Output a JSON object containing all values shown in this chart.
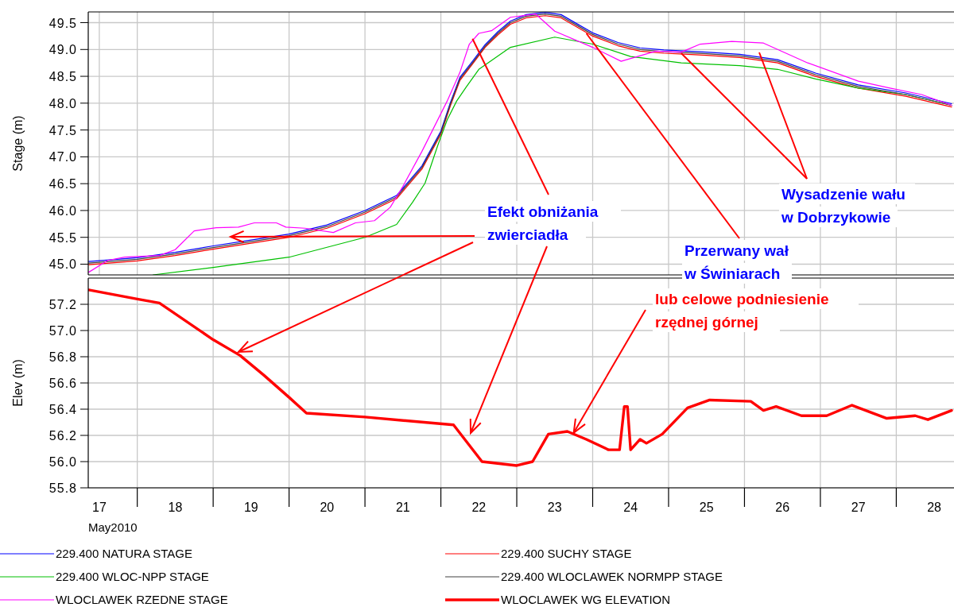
{
  "chart_data": [
    {
      "type": "line",
      "ylabel": "Stage (m)",
      "grid": true,
      "legend": "bottom",
      "tick_labels": "y",
      "xlim": [
        "2010-05-17T08:30",
        "2010-05-28T18:00"
      ],
      "xticks": [
        {
          "value": "2010-05-17T12:00",
          "label": null
        },
        {
          "value": "2010-05-18T00:00",
          "label": null
        },
        {
          "value": "2010-05-19T00:00",
          "label": null
        },
        {
          "value": "2010-05-20T00:00",
          "label": null
        },
        {
          "value": "2010-05-21T00:00",
          "label": null
        },
        {
          "value": "2010-05-22T00:00",
          "label": null
        },
        {
          "value": "2010-05-23T00:00",
          "label": null
        },
        {
          "value": "2010-05-24T00:00",
          "label": null
        },
        {
          "value": "2010-05-25T00:00",
          "label": null
        },
        {
          "value": "2010-05-26T00:00",
          "label": null
        },
        {
          "value": "2010-05-27T00:00",
          "label": null
        },
        {
          "value": "2010-05-28T00:00",
          "label": null
        }
      ],
      "ylim": [
        44.8,
        49.7
      ],
      "yticks": [
        {
          "value": 45,
          "label": "45.0"
        },
        45.5,
        {
          "value": 46,
          "label": "46.0"
        },
        46.5,
        {
          "value": 47,
          "label": "47.0"
        },
        47.5,
        {
          "value": 48,
          "label": "48.0"
        },
        48.5,
        {
          "value": 49,
          "label": "49.0"
        },
        49.5
      ],
      "annotations": [
        {
          "text": "Efekt obniżania\nzwierciadła",
          "x": "2010-05-22T10:00",
          "y": 49.2
        },
        {
          "text": "Przerwany wał\nw Świniarach",
          "x": "2010-05-23T22:00",
          "y": 49.3
        },
        {
          "text": "Wysadzenie wału\nw Dobrzykowie",
          "x": "2010-05-25T04:00",
          "y": 48.93
        }
      ],
      "series": [
        {
          "name": "229.400 NATURA STAGE",
          "color": "#0000ff",
          "x": [
            "2010-05-17T08:40",
            "2010-05-18T00:00",
            "2010-05-18T12:00",
            "2010-05-19T00:00",
            "2010-05-19T12:00",
            "2010-05-20T00:00",
            "2010-05-20T12:00",
            "2010-05-21T00:00",
            "2010-05-21T10:00",
            "2010-05-21T18:00",
            "2010-05-22T00:00",
            "2010-05-22T03:00",
            "2010-05-22T06:00",
            "2010-05-22T10:00",
            "2010-05-22T14:00",
            "2010-05-22T18:00",
            "2010-05-22T22:00",
            "2010-05-23T03:00",
            "2010-05-23T09:00",
            "2010-05-23T14:00",
            "2010-05-23T19:00",
            "2010-05-24T00:00",
            "2010-05-24T08:00",
            "2010-05-24T15:00",
            "2010-05-24T22:30",
            "2010-05-25T06:00",
            "2010-05-25T12:00",
            "2010-05-25T22:30",
            "2010-05-26T10:30",
            "2010-05-26T22:30",
            "2010-05-27T12:00",
            "2010-05-28T03:00",
            "2010-05-28T17:30"
          ],
          "values": [
            45.05,
            45.12,
            45.22,
            45.34,
            45.45,
            45.56,
            45.73,
            46.0,
            46.28,
            46.83,
            47.48,
            48.01,
            48.48,
            48.78,
            49.09,
            49.33,
            49.53,
            49.65,
            49.69,
            49.65,
            49.48,
            49.31,
            49.13,
            49.03,
            48.99,
            48.97,
            48.95,
            48.91,
            48.81,
            48.56,
            48.34,
            48.19,
            47.99
          ]
        },
        {
          "name": "229.400 SUCHY STAGE",
          "color": "#ff0000",
          "x": [
            "2010-05-17T08:40",
            "2010-05-18T00:00",
            "2010-05-18T12:00",
            "2010-05-19T00:00",
            "2010-05-19T12:00",
            "2010-05-20T00:00",
            "2010-05-20T12:00",
            "2010-05-21T00:00",
            "2010-05-21T10:00",
            "2010-05-21T18:00",
            "2010-05-22T00:00",
            "2010-05-22T03:00",
            "2010-05-22T06:00",
            "2010-05-22T10:00",
            "2010-05-22T14:00",
            "2010-05-22T18:00",
            "2010-05-22T22:00",
            "2010-05-23T03:00",
            "2010-05-23T09:00",
            "2010-05-23T14:00",
            "2010-05-23T19:00",
            "2010-05-24T00:00",
            "2010-05-24T08:00",
            "2010-05-24T15:00",
            "2010-05-24T22:30",
            "2010-05-25T06:00",
            "2010-05-25T12:00",
            "2010-05-25T22:30",
            "2010-05-26T10:30",
            "2010-05-26T22:30",
            "2010-05-27T12:00",
            "2010-05-28T03:00",
            "2010-05-28T17:30"
          ],
          "values": [
            44.99,
            45.06,
            45.16,
            45.28,
            45.39,
            45.5,
            45.67,
            45.94,
            46.22,
            46.77,
            47.42,
            47.95,
            48.42,
            48.73,
            49.04,
            49.27,
            49.47,
            49.59,
            49.63,
            49.59,
            49.42,
            49.25,
            49.07,
            48.97,
            48.93,
            48.91,
            48.89,
            48.85,
            48.75,
            48.5,
            48.28,
            48.13,
            47.93
          ]
        },
        {
          "name": "229.400 WLOC-NPP STAGE",
          "color": "#00c000",
          "x": [
            "2010-05-18T05:00",
            "2010-05-19T00:00",
            "2010-05-20T00:00",
            "2010-05-21T00:00",
            "2010-05-21T10:00",
            "2010-05-21T15:00",
            "2010-05-21T19:00",
            "2010-05-21T23:00",
            "2010-05-22T02:00",
            "2010-05-22T05:00",
            "2010-05-22T08:00",
            "2010-05-22T12:00",
            "2010-05-22T22:00",
            "2010-05-23T12:00",
            "2010-05-24T00:00",
            "2010-05-24T12:00",
            "2010-05-25T04:00",
            "2010-05-25T22:30",
            "2010-05-26T10:30",
            "2010-05-26T22:30",
            "2010-05-27T12:00",
            "2010-05-28T03:00",
            "2010-05-28T17:30"
          ],
          "values": [
            44.8,
            44.94,
            45.13,
            45.5,
            45.74,
            46.15,
            46.51,
            47.21,
            47.69,
            48.04,
            48.3,
            48.63,
            49.04,
            49.23,
            49.1,
            48.87,
            48.75,
            48.7,
            48.63,
            48.45,
            48.28,
            48.16,
            47.96
          ]
        },
        {
          "name": "229.400 WLOCLAWEK NORMPP STAGE",
          "color": "#404040",
          "x": [
            "2010-05-17T08:40",
            "2010-05-18T00:00",
            "2010-05-18T12:00",
            "2010-05-19T00:00",
            "2010-05-19T12:00",
            "2010-05-20T00:00",
            "2010-05-20T12:00",
            "2010-05-21T00:00",
            "2010-05-21T10:00",
            "2010-05-21T18:00",
            "2010-05-22T00:00",
            "2010-05-22T03:00",
            "2010-05-22T06:00",
            "2010-05-22T10:00",
            "2010-05-22T14:00",
            "2010-05-22T18:00",
            "2010-05-22T22:00",
            "2010-05-23T03:00",
            "2010-05-23T09:00",
            "2010-05-23T14:00",
            "2010-05-23T19:00",
            "2010-05-24T00:00",
            "2010-05-24T08:00",
            "2010-05-24T15:00",
            "2010-05-24T22:30",
            "2010-05-25T06:00",
            "2010-05-25T12:00",
            "2010-05-25T22:30",
            "2010-05-26T10:30",
            "2010-05-26T22:30",
            "2010-05-27T12:00",
            "2010-05-28T03:00",
            "2010-05-28T17:30"
          ],
          "values": [
            45.02,
            45.09,
            45.19,
            45.31,
            45.42,
            45.53,
            45.7,
            45.97,
            46.25,
            46.8,
            47.45,
            47.98,
            48.45,
            48.75,
            49.06,
            49.3,
            49.5,
            49.62,
            49.66,
            49.62,
            49.45,
            49.28,
            49.1,
            49.0,
            48.96,
            48.94,
            48.92,
            48.88,
            48.78,
            48.53,
            48.31,
            48.16,
            47.96
          ]
        },
        {
          "name": "WLOCLAWEK RZEDNE STAGE",
          "color": "#ff00ff",
          "x": [
            "2010-05-17T08:40",
            "2010-05-17T14:40",
            "2010-05-17T20:00",
            "2010-05-18T07:00",
            "2010-05-18T12:00",
            "2010-05-18T18:00",
            "2010-05-19T01:00",
            "2010-05-19T08:00",
            "2010-05-19T13:00",
            "2010-05-19T20:00",
            "2010-05-19T23:00",
            "2010-05-20T05:00",
            "2010-05-20T14:00",
            "2010-05-20T21:00",
            "2010-05-21T03:00",
            "2010-05-21T08:00",
            "2010-05-21T12:00",
            "2010-05-21T18:00",
            "2010-05-22T02:00",
            "2010-05-22T06:00",
            "2010-05-22T09:00",
            "2010-05-22T12:00",
            "2010-05-22T16:00",
            "2010-05-22T22:00",
            "2010-05-23T06:00",
            "2010-05-23T12:00",
            "2010-05-24T00:00",
            "2010-05-24T09:00",
            "2010-05-24T20:00",
            "2010-05-25T04:00",
            "2010-05-25T10:00",
            "2010-05-25T20:00",
            "2010-05-26T06:00",
            "2010-05-26T20:00",
            "2010-05-27T12:00",
            "2010-05-27T22:00",
            "2010-05-28T08:00",
            "2010-05-28T17:30"
          ],
          "values": [
            44.85,
            45.07,
            45.13,
            45.16,
            45.27,
            45.62,
            45.68,
            45.69,
            45.77,
            45.77,
            45.69,
            45.67,
            45.59,
            45.77,
            45.81,
            46.06,
            46.45,
            47.1,
            48.04,
            48.57,
            49.1,
            49.3,
            49.35,
            49.6,
            49.66,
            49.34,
            49.04,
            48.78,
            48.97,
            48.95,
            49.1,
            49.15,
            49.12,
            48.75,
            48.41,
            48.28,
            48.16,
            47.96
          ]
        }
      ]
    },
    {
      "type": "line",
      "ylabel": "Elev (m)",
      "xlabel": "May2010",
      "grid": true,
      "legend": "bottom",
      "xlim": [
        "2010-05-17T08:30",
        "2010-05-28T18:00"
      ],
      "xticks": [
        {
          "value": "2010-05-17T12:00",
          "label": "17"
        },
        {
          "value": "2010-05-18T00:00",
          "label": null
        },
        {
          "value": "2010-05-18T12:00",
          "label": "18"
        },
        {
          "value": "2010-05-19T00:00",
          "label": null
        },
        {
          "value": "2010-05-19T12:00",
          "label": "19"
        },
        {
          "value": "2010-05-20T00:00",
          "label": null
        },
        {
          "value": "2010-05-20T12:00",
          "label": "20"
        },
        {
          "value": "2010-05-21T00:00",
          "label": null
        },
        {
          "value": "2010-05-21T12:00",
          "label": "21"
        },
        {
          "value": "2010-05-22T00:00",
          "label": null
        },
        {
          "value": "2010-05-22T12:00",
          "label": "22"
        },
        {
          "value": "2010-05-23T00:00",
          "label": null
        },
        {
          "value": "2010-05-23T12:00",
          "label": "23"
        },
        {
          "value": "2010-05-24T00:00",
          "label": null
        },
        {
          "value": "2010-05-24T12:00",
          "label": "24"
        },
        {
          "value": "2010-05-25T00:00",
          "label": null
        },
        {
          "value": "2010-05-25T12:00",
          "label": "25"
        },
        {
          "value": "2010-05-26T00:00",
          "label": null
        },
        {
          "value": "2010-05-26T12:00",
          "label": "26"
        },
        {
          "value": "2010-05-27T00:00",
          "label": null
        },
        {
          "value": "2010-05-27T12:00",
          "label": "27"
        },
        {
          "value": "2010-05-28T00:00",
          "label": null
        },
        {
          "value": "2010-05-28T12:00",
          "label": "28"
        }
      ],
      "ylim": [
        55.8,
        57.4
      ],
      "yticks": [
        55.8,
        {
          "value": 56,
          "label": "56.0"
        },
        56.2,
        56.4,
        56.6,
        56.8,
        {
          "value": 57,
          "label": "57.0"
        },
        57.2
      ],
      "annotations": [
        {
          "text": "lub celowe podniesienie\nrzędnej górnej",
          "x": "2010-05-23T18:00",
          "y": 56.22
        }
      ],
      "series": [
        {
          "name": "WLOCLAWEK WG ELEVATION",
          "color": "#ff0000",
          "x": [
            "2010-05-17T08:40",
            "2010-05-18T00:00",
            "2010-05-18T07:00",
            "2010-05-19T00:00",
            "2010-05-19T08:30",
            "2010-05-19T16:00",
            "2010-05-20T00:00",
            "2010-05-20T05:30",
            "2010-05-21T00:00",
            "2010-05-22T04:00",
            "2010-05-22T13:00",
            "2010-05-23T00:00",
            "2010-05-23T05:00",
            "2010-05-23T10:00",
            "2010-05-23T16:00",
            "2010-05-23T22:00",
            "2010-05-24T05:00",
            "2010-05-24T08:30",
            "2010-05-24T10:00",
            "2010-05-24T11:00",
            "2010-05-24T12:00",
            "2010-05-24T15:00",
            "2010-05-24T17:00",
            "2010-05-24T22:00",
            "2010-05-25T06:00",
            "2010-05-25T13:00",
            "2010-05-26T02:00",
            "2010-05-26T06:00",
            "2010-05-26T10:00",
            "2010-05-26T18:00",
            "2010-05-27T02:00",
            "2010-05-27T10:00",
            "2010-05-27T21:00",
            "2010-05-28T06:00",
            "2010-05-28T10:00",
            "2010-05-28T17:30"
          ],
          "values": [
            57.31,
            57.24,
            57.21,
            56.93,
            56.81,
            56.66,
            56.49,
            56.37,
            56.34,
            56.28,
            56.0,
            55.97,
            56.0,
            56.21,
            56.23,
            56.17,
            56.09,
            56.09,
            56.42,
            56.42,
            56.09,
            56.17,
            56.14,
            56.21,
            56.41,
            56.47,
            56.46,
            56.39,
            56.42,
            56.35,
            56.35,
            56.43,
            56.33,
            56.35,
            56.32,
            56.39
          ]
        }
      ]
    }
  ]
}
